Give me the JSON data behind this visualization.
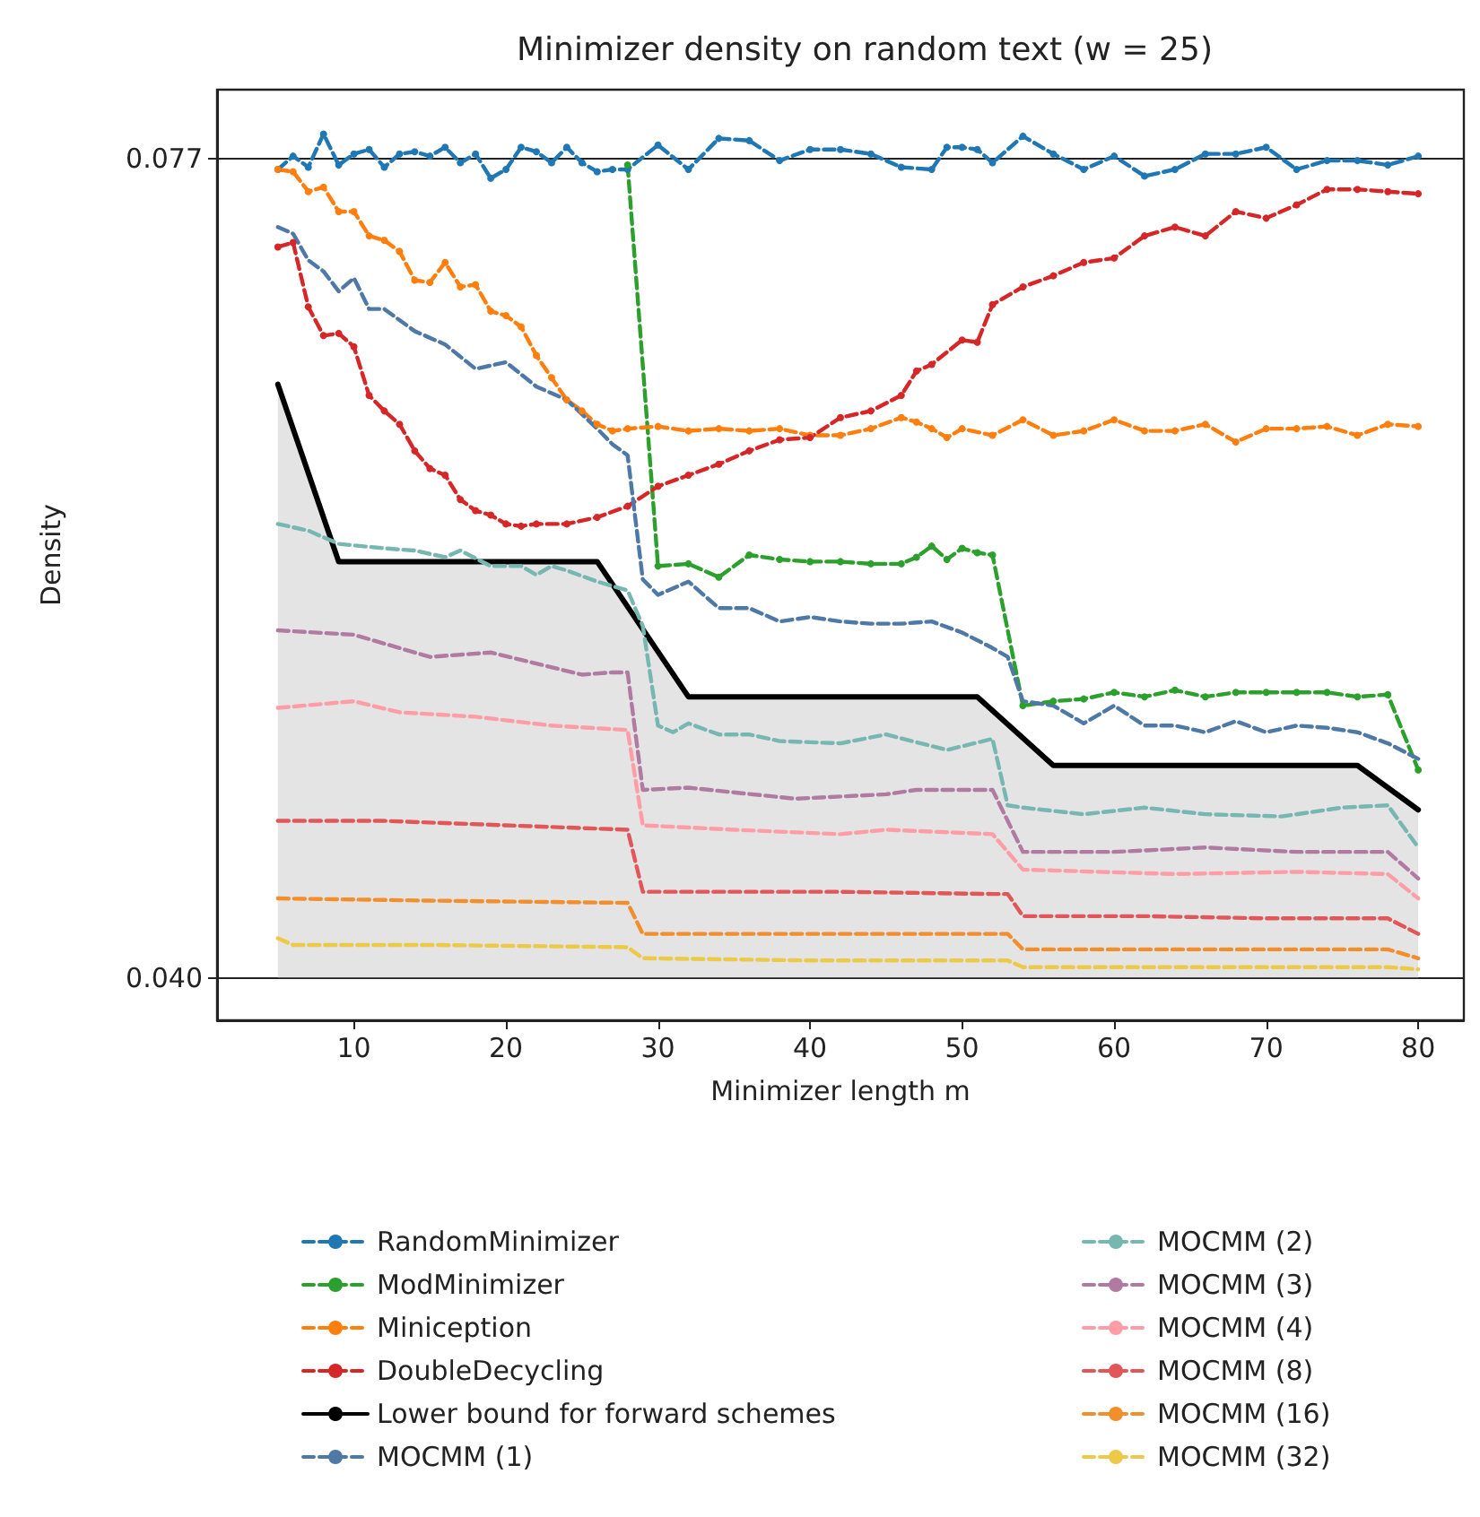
{
  "chart_data": {
    "type": "line",
    "title": "Minimizer density on random text (w = 25)",
    "xlabel": "Minimizer length m",
    "ylabel": "Density",
    "xlim": [
      1,
      83
    ],
    "xticks": [
      10,
      20,
      30,
      40,
      50,
      60,
      70,
      80
    ],
    "ylim": [
      0.0381,
      0.0801
    ],
    "yticks": [
      {
        "value": 0.04,
        "label": "0.040"
      },
      0.077
    ],
    "grid": "y",
    "legend": "bottom",
    "series": [
      {
        "name": "RandomMinimizer",
        "color": "#1f77b4",
        "line_style": "dashed",
        "marker": "circle",
        "x": [
          5,
          6,
          7,
          8,
          9,
          10,
          11,
          12,
          13,
          14,
          15,
          16,
          17,
          18,
          19,
          20,
          21,
          22,
          23,
          24,
          25,
          26,
          27,
          28,
          30,
          32,
          34,
          36,
          38,
          40,
          42,
          44,
          46,
          48,
          49,
          50,
          51,
          52,
          54,
          56,
          58,
          60,
          62,
          64,
          66,
          68,
          70,
          72,
          74,
          76,
          78,
          80
        ],
        "values": [
          0.0765,
          0.0771,
          0.0766,
          0.0781,
          0.0767,
          0.0772,
          0.0774,
          0.0766,
          0.0772,
          0.0773,
          0.0771,
          0.0775,
          0.0768,
          0.0772,
          0.0761,
          0.0765,
          0.0775,
          0.0773,
          0.0768,
          0.0775,
          0.0768,
          0.0764,
          0.0765,
          0.0765,
          0.0776,
          0.0765,
          0.0779,
          0.0778,
          0.0769,
          0.0774,
          0.0774,
          0.0772,
          0.0766,
          0.0765,
          0.0775,
          0.0775,
          0.0774,
          0.0768,
          0.078,
          0.0772,
          0.0765,
          0.0771,
          0.0762,
          0.0765,
          0.0772,
          0.0772,
          0.0775,
          0.0765,
          0.0769,
          0.0769,
          0.0767,
          0.0771
        ]
      },
      {
        "name": "ModMinimizer",
        "color": "#2ca02c",
        "line_style": "dashed",
        "marker": "circle",
        "x": [
          28,
          30,
          32,
          34,
          36,
          38,
          40,
          42,
          44,
          46,
          47,
          48,
          49,
          50,
          51,
          52,
          54,
          56,
          58,
          60,
          62,
          64,
          66,
          68,
          70,
          72,
          74,
          76,
          78,
          80
        ],
        "values": [
          0.0767,
          0.0586,
          0.0587,
          0.0581,
          0.0591,
          0.0589,
          0.0588,
          0.0588,
          0.0587,
          0.0587,
          0.059,
          0.0595,
          0.0589,
          0.0594,
          0.0592,
          0.0591,
          0.0523,
          0.0525,
          0.0526,
          0.0529,
          0.0527,
          0.053,
          0.0527,
          0.0529,
          0.0529,
          0.0529,
          0.0529,
          0.0527,
          0.0528,
          0.0494
        ]
      },
      {
        "name": "Miniception",
        "color": "#ff7f0e",
        "line_style": "dashed",
        "marker": "circle",
        "x": [
          5,
          6,
          7,
          8,
          9,
          10,
          11,
          12,
          13,
          14,
          15,
          16,
          17,
          18,
          19,
          20,
          21,
          22,
          23,
          24,
          25,
          26,
          27,
          28,
          30,
          32,
          34,
          36,
          38,
          40,
          42,
          44,
          46,
          47,
          48,
          49,
          50,
          52,
          54,
          56,
          58,
          60,
          62,
          64,
          66,
          68,
          70,
          72,
          74,
          76,
          78,
          80
        ],
        "values": [
          0.0765,
          0.0764,
          0.0755,
          0.0757,
          0.0746,
          0.0746,
          0.0735,
          0.0733,
          0.0728,
          0.0715,
          0.0714,
          0.0723,
          0.0712,
          0.0713,
          0.0701,
          0.0699,
          0.0694,
          0.0681,
          0.0671,
          0.0661,
          0.0656,
          0.065,
          0.0647,
          0.0648,
          0.0649,
          0.0647,
          0.0648,
          0.0647,
          0.0648,
          0.0645,
          0.0645,
          0.0648,
          0.0653,
          0.0651,
          0.0648,
          0.0644,
          0.0648,
          0.0645,
          0.0652,
          0.0645,
          0.0647,
          0.0652,
          0.0647,
          0.0647,
          0.065,
          0.0642,
          0.0648,
          0.0648,
          0.0649,
          0.0645,
          0.065,
          0.0649
        ]
      },
      {
        "name": "DoubleDecycling",
        "color": "#d62728",
        "line_style": "dashed",
        "marker": "circle",
        "x": [
          5,
          6,
          7,
          8,
          9,
          10,
          11,
          12,
          13,
          14,
          15,
          16,
          17,
          18,
          19,
          20,
          21,
          22,
          24,
          26,
          28,
          30,
          32,
          34,
          36,
          38,
          40,
          42,
          44,
          46,
          47,
          48,
          50,
          51,
          52,
          54,
          56,
          58,
          60,
          62,
          64,
          66,
          68,
          70,
          72,
          74,
          76,
          78,
          80
        ],
        "values": [
          0.073,
          0.0732,
          0.0703,
          0.069,
          0.0691,
          0.0685,
          0.0663,
          0.0656,
          0.065,
          0.0638,
          0.063,
          0.0627,
          0.0616,
          0.0611,
          0.0609,
          0.0605,
          0.0604,
          0.0605,
          0.0605,
          0.0608,
          0.0613,
          0.0622,
          0.0627,
          0.0632,
          0.0638,
          0.0643,
          0.0644,
          0.0653,
          0.0656,
          0.0663,
          0.0674,
          0.0677,
          0.0688,
          0.0687,
          0.0704,
          0.0712,
          0.0717,
          0.0723,
          0.0725,
          0.0735,
          0.0739,
          0.0735,
          0.0746,
          0.0743,
          0.0749,
          0.0756,
          0.0756,
          0.0755,
          0.0754
        ]
      },
      {
        "name": "Lower bound for forward schemes",
        "type": "area",
        "color": "#000000",
        "line_style": "solid",
        "marker": "none",
        "x": [
          5,
          9,
          26,
          32,
          51,
          56,
          76,
          80
        ],
        "values": [
          0.0668,
          0.0588,
          0.0588,
          0.0527,
          0.0527,
          0.0496,
          0.0496,
          0.0476
        ]
      },
      {
        "name": "MOCMM (1)",
        "color": "#4e79a7",
        "line_style": "dashed",
        "marker": "none",
        "x": [
          5,
          6,
          7,
          8,
          9,
          10,
          11,
          12,
          14,
          16,
          18,
          20,
          22,
          24,
          26,
          27,
          28,
          29,
          30,
          32,
          34,
          36,
          38,
          40,
          42,
          44,
          46,
          48,
          50,
          52,
          53,
          54,
          56,
          58,
          60,
          62,
          64,
          66,
          68,
          70,
          72,
          74,
          76,
          78,
          80
        ],
        "values": [
          0.0739,
          0.0736,
          0.0724,
          0.0719,
          0.071,
          0.0716,
          0.0702,
          0.0702,
          0.0692,
          0.0686,
          0.0675,
          0.0678,
          0.0667,
          0.0661,
          0.0648,
          0.0641,
          0.0636,
          0.058,
          0.0573,
          0.0579,
          0.0567,
          0.0567,
          0.0561,
          0.0563,
          0.0561,
          0.056,
          0.056,
          0.0561,
          0.0556,
          0.0549,
          0.0545,
          0.0525,
          0.0523,
          0.0515,
          0.0523,
          0.0514,
          0.0514,
          0.0511,
          0.0516,
          0.0511,
          0.0514,
          0.0513,
          0.0511,
          0.0506,
          0.0499
        ]
      },
      {
        "name": "MOCMM (2)",
        "color": "#76b7b2",
        "line_style": "dashed",
        "marker": "none",
        "x": [
          5,
          7,
          9,
          12,
          14,
          16,
          17,
          19,
          21,
          22,
          23,
          24,
          26,
          28,
          29,
          30,
          31,
          32,
          34,
          36,
          38,
          42,
          45,
          49,
          52,
          53,
          54,
          58,
          62,
          66,
          71,
          75,
          78,
          80
        ],
        "values": [
          0.0605,
          0.0602,
          0.0596,
          0.0594,
          0.0593,
          0.059,
          0.0593,
          0.0586,
          0.0586,
          0.0582,
          0.0586,
          0.0584,
          0.0579,
          0.0575,
          0.0559,
          0.0514,
          0.0511,
          0.0515,
          0.051,
          0.051,
          0.0507,
          0.0506,
          0.051,
          0.0503,
          0.0508,
          0.0478,
          0.0477,
          0.0474,
          0.0477,
          0.0474,
          0.0473,
          0.0477,
          0.0478,
          0.0459
        ]
      },
      {
        "name": "MOCMM (3)",
        "color": "#b07aa1",
        "line_style": "dashed",
        "marker": "none",
        "x": [
          5,
          10,
          15,
          19,
          25,
          27,
          28,
          29,
          32,
          39,
          45,
          47,
          52,
          54,
          60,
          66,
          72,
          78,
          80
        ],
        "values": [
          0.0557,
          0.0555,
          0.0545,
          0.0547,
          0.0537,
          0.0538,
          0.0538,
          0.0485,
          0.0486,
          0.0481,
          0.0483,
          0.0485,
          0.0485,
          0.0457,
          0.0457,
          0.0459,
          0.0457,
          0.0457,
          0.0445
        ]
      },
      {
        "name": "MOCMM (4)",
        "color": "#ff9da7",
        "line_style": "dashed",
        "marker": "none",
        "x": [
          5,
          10,
          13,
          18,
          23,
          28,
          29,
          35,
          42,
          45,
          52,
          54,
          64,
          72,
          78,
          80
        ],
        "values": [
          0.0522,
          0.0525,
          0.052,
          0.0518,
          0.0514,
          0.0512,
          0.0469,
          0.0467,
          0.0465,
          0.0467,
          0.0465,
          0.0449,
          0.0447,
          0.0448,
          0.0447,
          0.0436
        ]
      },
      {
        "name": "MOCMM (8)",
        "color": "#e15759",
        "line_style": "dashed",
        "marker": "none",
        "x": [
          5,
          12,
          20,
          28,
          29,
          35,
          42,
          52,
          53,
          54,
          62,
          70,
          78,
          80
        ],
        "values": [
          0.0471,
          0.0471,
          0.0469,
          0.0467,
          0.0439,
          0.0439,
          0.0439,
          0.0438,
          0.0438,
          0.0428,
          0.0428,
          0.0427,
          0.0427,
          0.042
        ]
      },
      {
        "name": "MOCMM (16)",
        "color": "#f28e2b",
        "line_style": "dashed",
        "marker": "none",
        "x": [
          5,
          15,
          28,
          29,
          40,
          53,
          54,
          66,
          78,
          80
        ],
        "values": [
          0.0436,
          0.0435,
          0.0434,
          0.042,
          0.042,
          0.042,
          0.0413,
          0.0413,
          0.0413,
          0.0409
        ]
      },
      {
        "name": "MOCMM (32)",
        "color": "#edc948",
        "line_style": "dashed",
        "marker": "none",
        "x": [
          5,
          6,
          15,
          28,
          29,
          40,
          53,
          54,
          66,
          78,
          80
        ],
        "values": [
          0.0418,
          0.0415,
          0.0415,
          0.0414,
          0.0409,
          0.0408,
          0.0408,
          0.0405,
          0.0405,
          0.0405,
          0.0404
        ]
      }
    ]
  }
}
